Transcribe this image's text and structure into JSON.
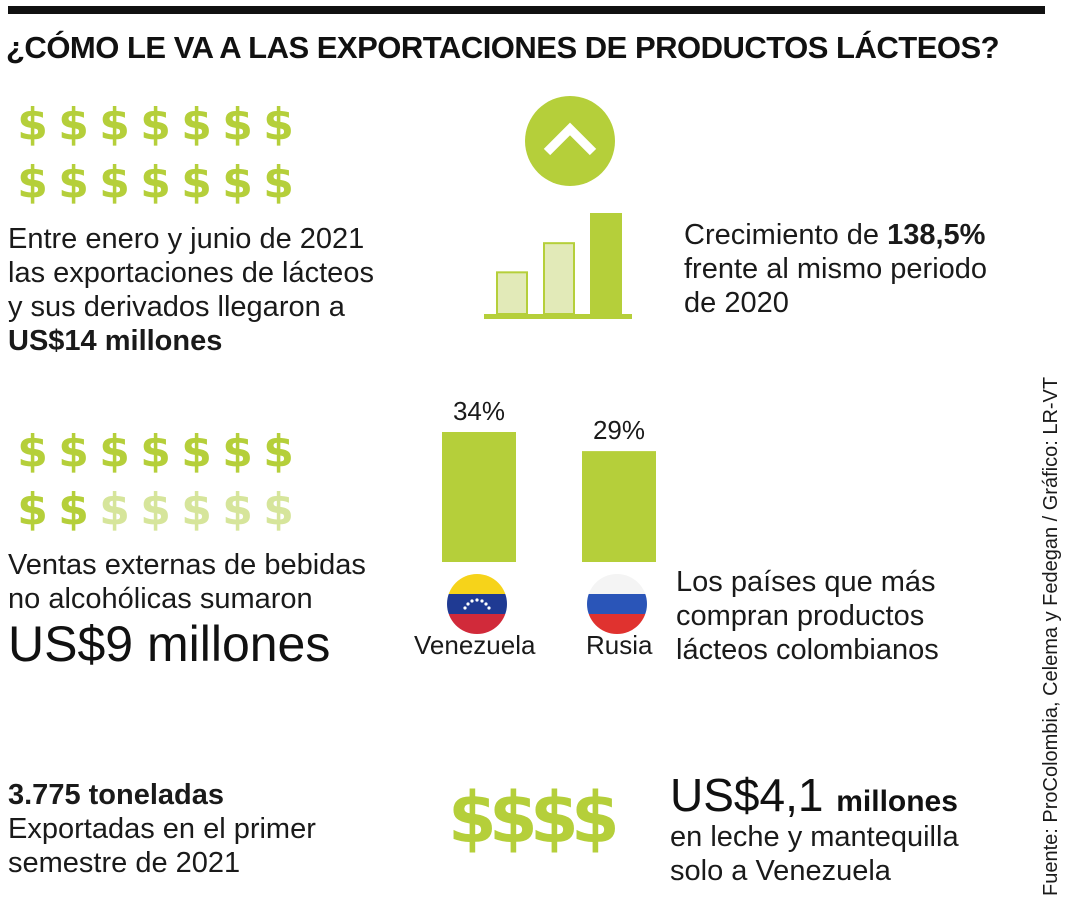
{
  "title": "¿CÓMO LE VA A LAS EXPORTACIONES DE PRODUCTOS LÁCTEOS?",
  "colors": {
    "green": "#b5cf3a",
    "light_green": "#d6e59b",
    "pale_green": "#e2eab8",
    "dark": "#111111"
  },
  "icons": {
    "dollar_sign": "$",
    "up_arrow": "chevron-up-icon"
  },
  "block1": {
    "line1": "Entre enero y junio de 2021",
    "line2": "las exportaciones de lácteos",
    "line3": "y sus derivados llegaron a",
    "line4": "US$14 millones"
  },
  "growth": {
    "line1_prefix": "Crecimiento de ",
    "line1_value": "138,5%",
    "line2": "frente al mismo periodo",
    "line3": "de 2020"
  },
  "block2": {
    "line1": "Ventas externas de bebidas",
    "line2": "no alcohólicas sumaron",
    "big": "US$9 millones",
    "dollar_fill": {
      "filled": 9,
      "total": 14
    }
  },
  "countries": {
    "line1": "Los países que más",
    "line2": "compran productos",
    "line3": "lácteos colombianos"
  },
  "block3": {
    "bold": "3.775 toneladas",
    "line1": "Exportadas en el primer",
    "line2": "semestre de 2021"
  },
  "block4": {
    "big": "US$4,1",
    "unit": "millones",
    "line1": "en leche y mantequilla",
    "line2": "solo a Venezuela"
  },
  "source": "Fuente: ProColombia, Celema y Fedegan / Gráfico: LR-VT",
  "chart_data": [
    {
      "type": "bar",
      "categories": [
        "",
        "",
        ""
      ],
      "values": [
        1,
        1.7,
        2.4
      ],
      "title": "",
      "xlabel": "",
      "ylabel": "",
      "grid": false,
      "legend": "none"
    },
    {
      "type": "bar",
      "categories": [
        "Venezuela",
        "Rusia"
      ],
      "values": [
        34,
        29
      ],
      "value_labels": [
        "34%",
        "29%"
      ],
      "title": "",
      "xlabel": "",
      "ylabel": "",
      "ylim": [
        0,
        34
      ],
      "grid": false,
      "legend": "none"
    }
  ]
}
